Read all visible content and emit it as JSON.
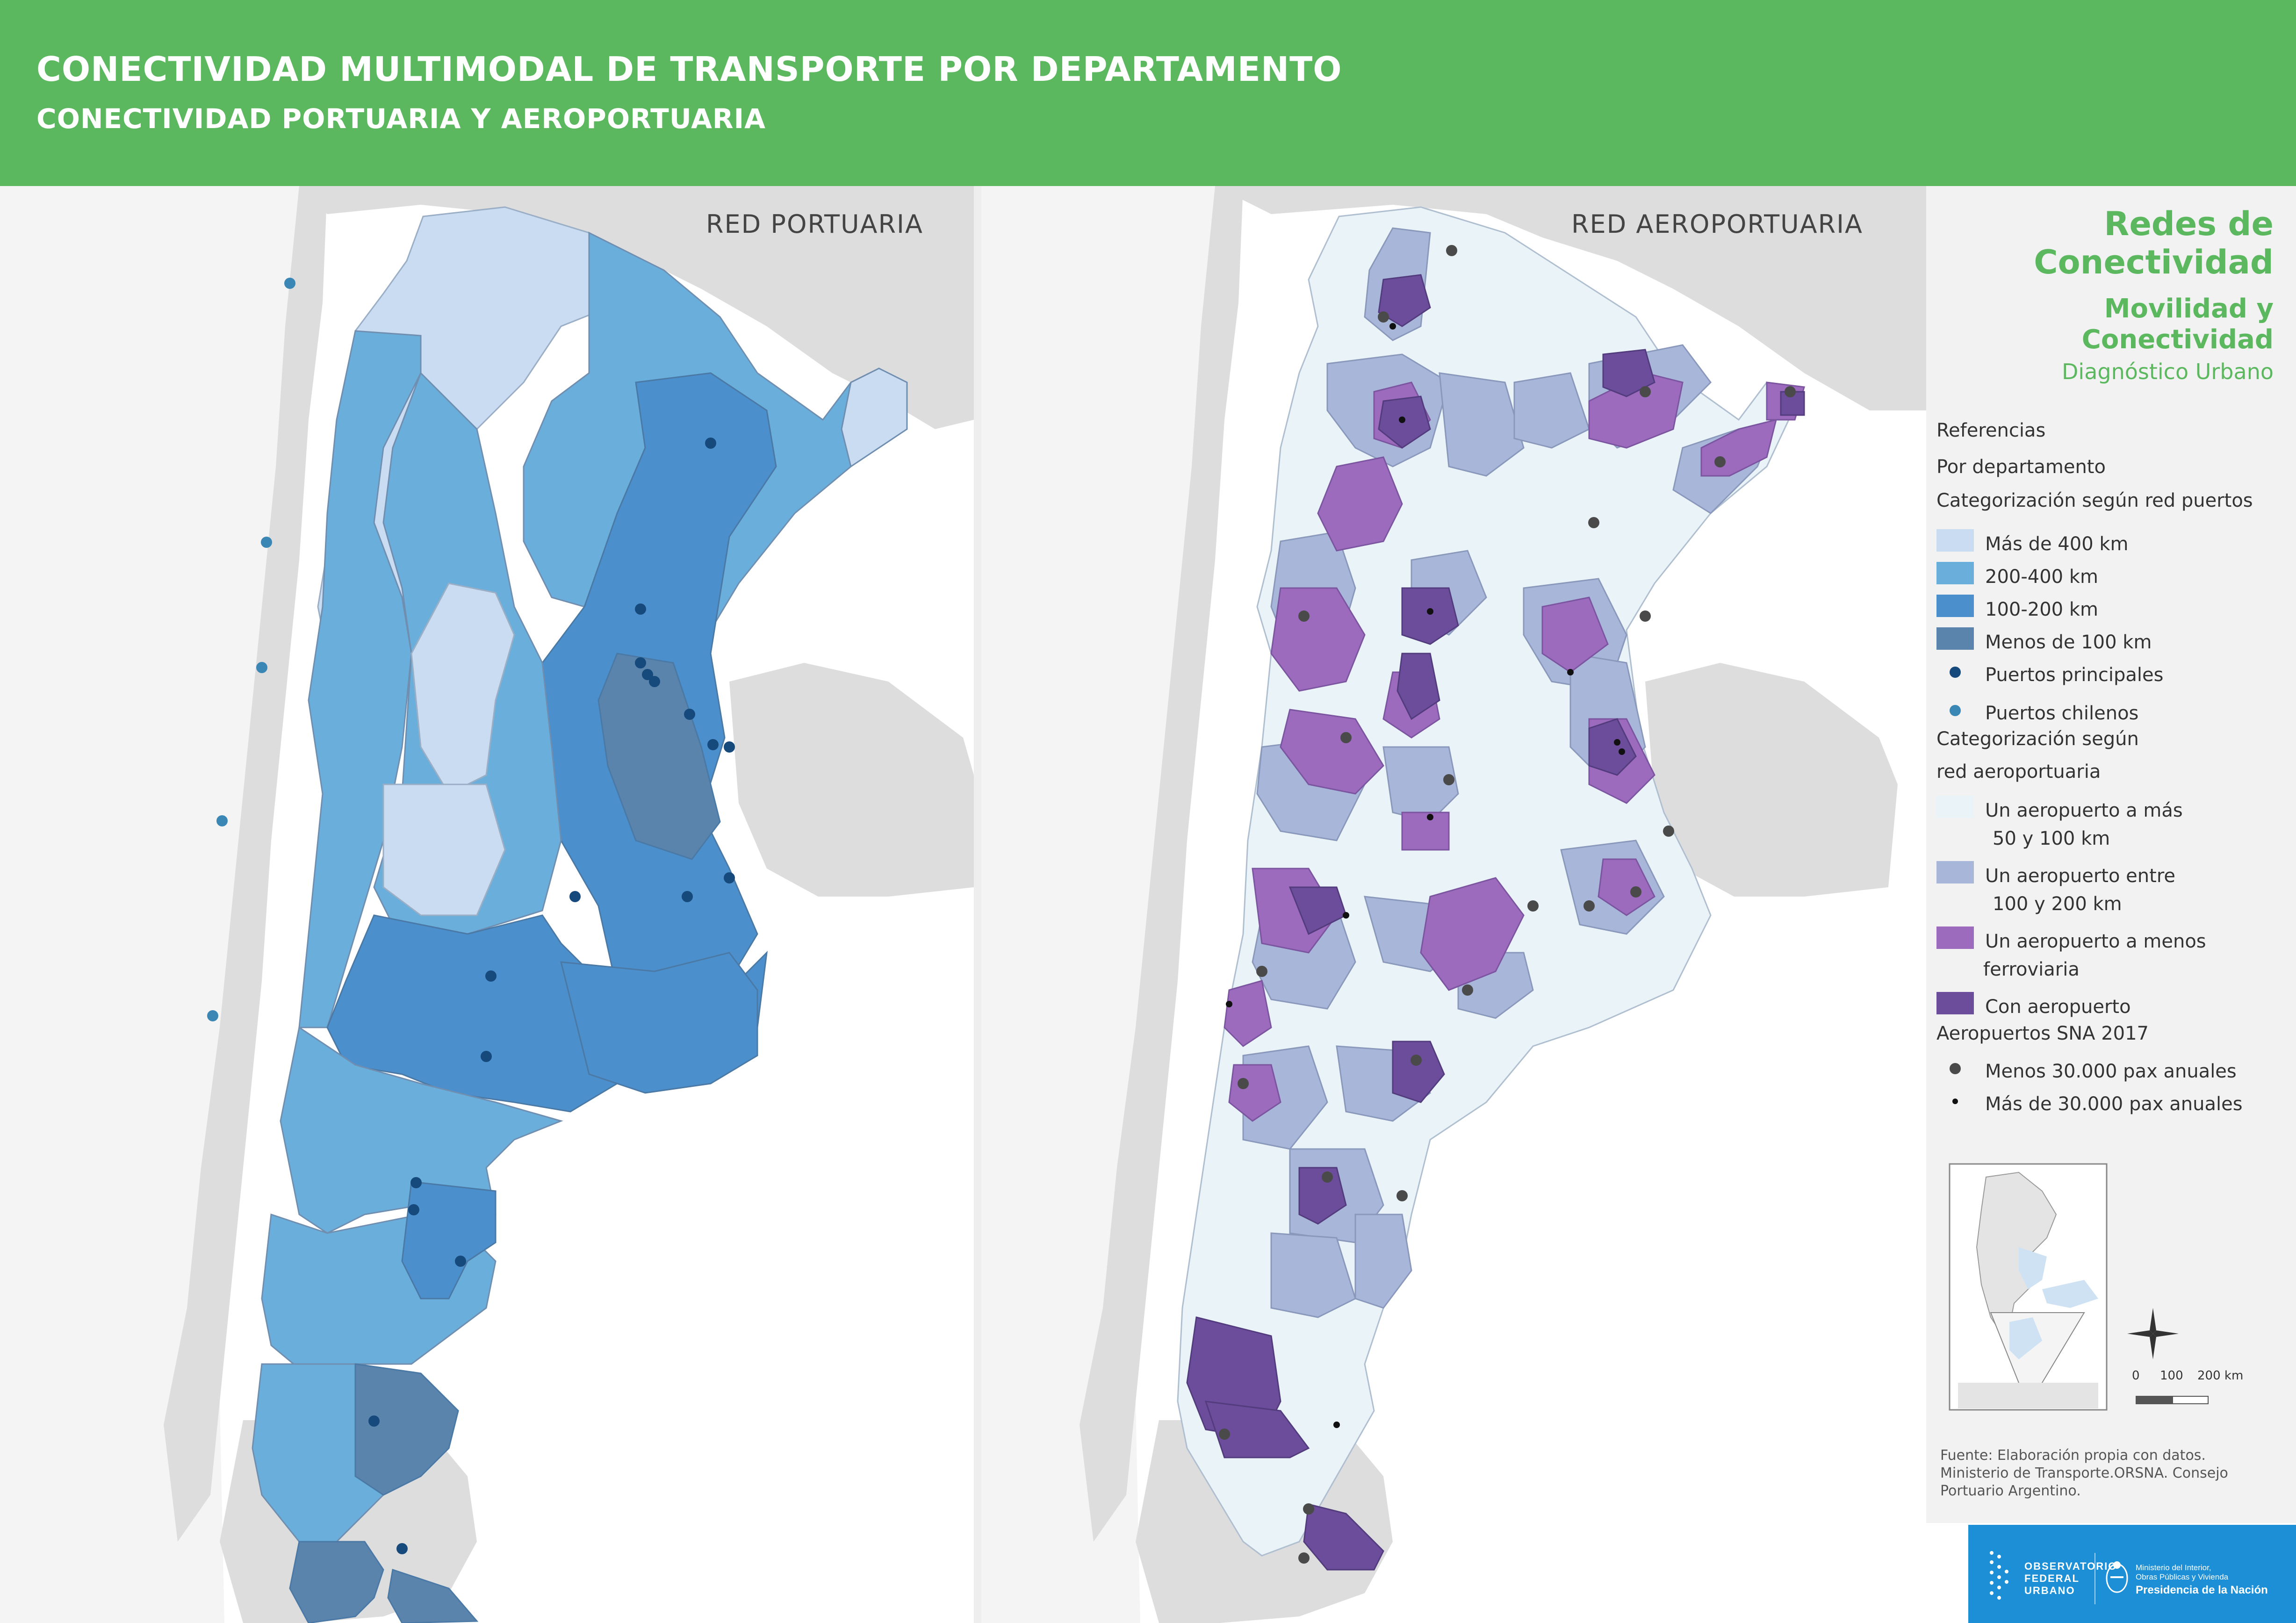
{
  "header": {
    "title": "CONECTIVIDAD MULTIMODAL DE TRANSPORTE POR DEPARTAMENTO",
    "subtitle": "CONECTIVIDAD PORTUARIA Y AEROPORTUARIA"
  },
  "maps": {
    "port": {
      "label": "RED PORTUARIA"
    },
    "air": {
      "label": "RED AEROPORTUARIA"
    }
  },
  "colors": {
    "header_bg": "#5cb85f",
    "port_over_400": "#c9dcf2",
    "port_200_400": "#6aaedb",
    "port_100_200": "#4b8fcc",
    "port_under_100": "#5b84ad",
    "port_main": "#174a7c",
    "port_chile": "#3a86b4",
    "air_50_100": "#eaf4f8",
    "air_100_200": "#a7b6d9",
    "air_under": "#9c6bbd",
    "air_with": "#6c4d9b",
    "airport_small": "#4a4a4a",
    "airport_large": "#111111",
    "neighbor_land": "#dddddd",
    "footer_bg": "#1c8fd6"
  },
  "legend": {
    "title": "Redes de Conectividad",
    "subtitle1": "Movilidad y Conectividad",
    "subtitle2": "Diagnóstico Urbano",
    "refs": "Referencias",
    "by_dept": "Por departamento",
    "port_cat": "Categorización según red puertos",
    "port_items": [
      {
        "label": "Más de 400 km",
        "color": "#c9dcf2"
      },
      {
        "label": "200-400 km",
        "color": "#6aaedb"
      },
      {
        "label": "100-200 km",
        "color": "#4b8fcc"
      },
      {
        "label": "Menos de 100 km",
        "color": "#5b84ad"
      }
    ],
    "port_main": "Puertos principales",
    "port_chile": "Puertos chilenos",
    "air_cat_1": "Categorización según",
    "air_cat_2": "red aeroportuaria",
    "air_items": [
      {
        "line1": "Un aeropuerto a más",
        "line2": "50 y 100 km",
        "color": "#eaf4f8"
      },
      {
        "line1": "Un aeropuerto entre",
        "line2": "100 y 200 km",
        "color": "#a7b6d9"
      },
      {
        "line1": "Un aeropuerto a menos",
        "line2": "ferroviaria",
        "color": "#9c6bbd"
      },
      {
        "line1": "Con aeropuerto",
        "line2": "",
        "color": "#6c4d9b"
      }
    ],
    "sna": "Aeropuertos SNA 2017",
    "sna_small": "Menos 30.000 pax anuales",
    "sna_large": "Más de 30.000 pax anuales",
    "scale": {
      "s0": "0",
      "s1": "100",
      "s2": "200 km"
    }
  },
  "source": "Fuente: Elaboración propia con datos. Ministerio de Transporte.ORSNA. Consejo Portuario Argentino.",
  "footer": {
    "obs1": "OBSERVATORIO",
    "obs2": "FEDERAL",
    "obs3": "URBANO",
    "min1": "Ministerio del Interior,",
    "min2": "Obras Públicas y Vivienda",
    "pres": "Presidencia de la Nación"
  }
}
